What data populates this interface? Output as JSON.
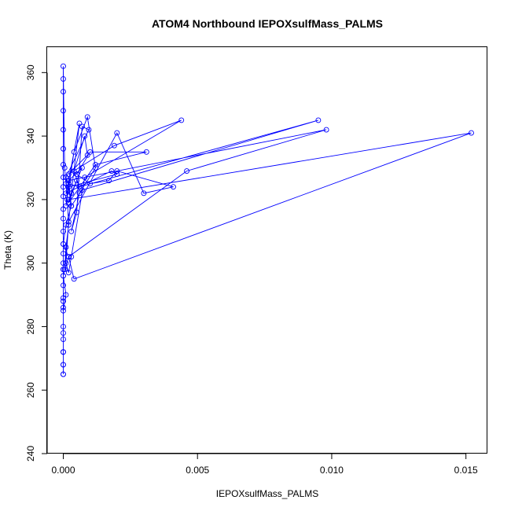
{
  "chart_data": {
    "type": "scatter",
    "title": "ATOM4 Northbound IEPOXsulfMass_PALMS",
    "xlabel": "IEPOXsulfMass_PALMS",
    "ylabel": "Theta (K)",
    "xlim": [
      -0.0006,
      0.0158
    ],
    "ylim": [
      240,
      368
    ],
    "x_ticks": [
      0.0,
      0.005,
      0.01,
      0.015
    ],
    "x_tick_labels": [
      "0.000",
      "0.005",
      "0.010",
      "0.015"
    ],
    "y_ticks": [
      240,
      260,
      280,
      300,
      320,
      340,
      360
    ],
    "y_tick_labels": [
      "240",
      "260",
      "280",
      "300",
      "320",
      "340",
      "360"
    ],
    "grid": false,
    "legend": "none",
    "color": "#0000ff",
    "marker": "open-circle",
    "connected": true,
    "series": [
      {
        "x": [
          0,
          0,
          0,
          0,
          0,
          0,
          0,
          0,
          0,
          0,
          0,
          0,
          0,
          0,
          0,
          0,
          0,
          0,
          0,
          0,
          0,
          0,
          0,
          0,
          0,
          0,
          5e-05,
          0.0001,
          0.00015,
          0.0002,
          0.0001,
          5e-05,
          0.0003,
          0.0006,
          0.0002,
          0.0001,
          0.0004,
          0.0009,
          0.0012,
          0.0006,
          0.0003,
          0.0005,
          0.0007,
          0.00095,
          0.0001,
          0.0002,
          0.0006,
          0.0004,
          0.0008,
          0.0009,
          0.0002,
          0.0019,
          0.0044,
          0.0008,
          0.0003,
          0.0002,
          0.0001,
          0.0002,
          0.002,
          0.003,
          0.0041,
          0.002,
          0.0017,
          0.001,
          0.0005,
          0.001,
          0.0031,
          0.0012,
          0.0002,
          0.0005,
          0.0006,
          0.0095,
          0.0007,
          0.0003,
          0.0002,
          0.0098,
          0.0046,
          0.0002,
          0.0004,
          0.0152,
          0.0002,
          0.0007,
          0.0002,
          0.0001,
          0.0018,
          0.002,
          0.0002,
          0.0003,
          0.0001,
          0,
          0.0002,
          0,
          0.0001,
          0,
          0,
          0,
          0,
          0,
          0,
          0
        ],
        "y": [
          265,
          268,
          272,
          276,
          280,
          286,
          289,
          293,
          296,
          298,
          300,
          303,
          306,
          310,
          314,
          317,
          321,
          324,
          327,
          331,
          336,
          342,
          348,
          354,
          358,
          362,
          330,
          325,
          320,
          312,
          305,
          298,
          322,
          344,
          326,
          318,
          335,
          346,
          330,
          322,
          310,
          316,
          343,
          342,
          327,
          325,
          324,
          329,
          340,
          334,
          328,
          337,
          345,
          327,
          302,
          297,
          300,
          313,
          341,
          322,
          324,
          329,
          326,
          325,
          328,
          335,
          335,
          331,
          319,
          326,
          324,
          345,
          323,
          318,
          326,
          342,
          329,
          302,
          295,
          341,
          320,
          330,
          326,
          322,
          329,
          328,
          324,
          318,
          312,
          306,
          302,
          296,
          290,
          285,
          278,
          272,
          268,
          265,
          288,
          298
        ]
      }
    ]
  }
}
